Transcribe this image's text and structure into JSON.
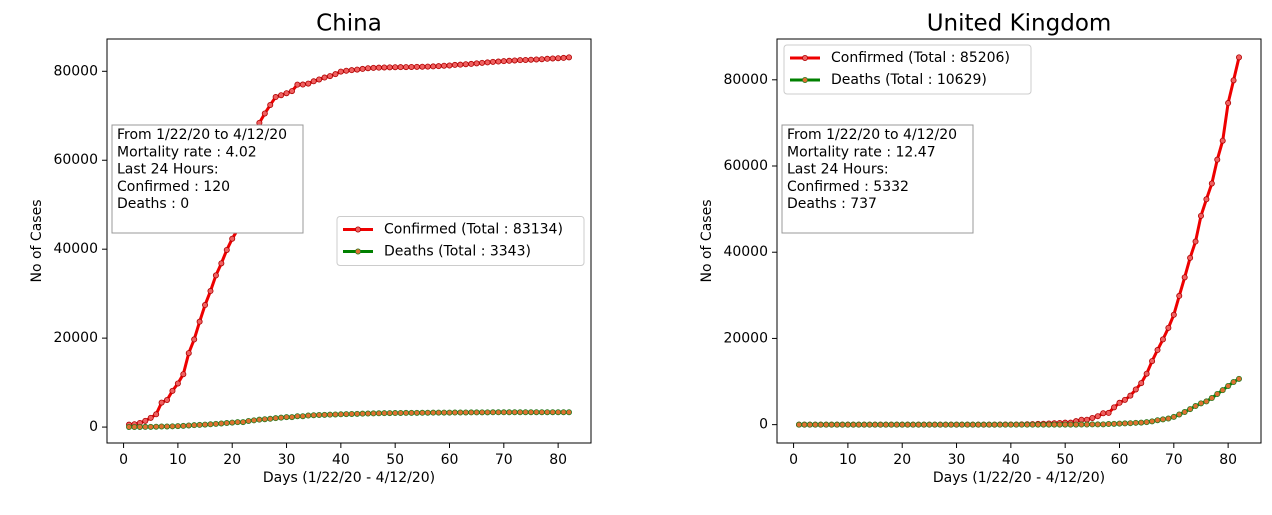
{
  "chart_data": [
    {
      "type": "line",
      "title": "China",
      "xlabel": "Days (1/22/20 - 4/12/20)",
      "ylabel": "No of Cases",
      "x": [
        1,
        2,
        3,
        4,
        5,
        6,
        7,
        8,
        9,
        10,
        11,
        12,
        13,
        14,
        15,
        16,
        17,
        18,
        19,
        20,
        21,
        22,
        23,
        24,
        25,
        26,
        27,
        28,
        29,
        30,
        31,
        32,
        33,
        34,
        35,
        36,
        37,
        38,
        39,
        40,
        41,
        42,
        43,
        44,
        45,
        46,
        47,
        48,
        49,
        50,
        51,
        52,
        53,
        54,
        55,
        56,
        57,
        58,
        59,
        60,
        61,
        62,
        63,
        64,
        65,
        66,
        67,
        68,
        69,
        70,
        71,
        72,
        73,
        74,
        75,
        76,
        77,
        78,
        79,
        80,
        81,
        82
      ],
      "series": [
        {
          "name": "Confirmed (Total : 83134)",
          "color": "#ee0000",
          "marker_color": "#f06060",
          "marker_edge": "#b00000",
          "values": [
            548,
            643,
            920,
            1406,
            2075,
            2877,
            5509,
            6087,
            8141,
            9802,
            11891,
            16630,
            19716,
            23707,
            27440,
            30587,
            34110,
            36814,
            39829,
            42354,
            44386,
            44759,
            59895,
            66358,
            68413,
            70513,
            72434,
            74211,
            74619,
            75077,
            75550,
            77001,
            77022,
            77241,
            77754,
            78166,
            78600,
            78928,
            79356,
            79932,
            80136,
            80261,
            80386,
            80537,
            80690,
            80770,
            80823,
            80860,
            80887,
            80921,
            80932,
            80945,
            80977,
            81003,
            81033,
            81058,
            81102,
            81156,
            81250,
            81305,
            81435,
            81498,
            81591,
            81661,
            81782,
            81897,
            81999,
            82122,
            82198,
            82279,
            82361,
            82432,
            82511,
            82543,
            82602,
            82665,
            82718,
            82809,
            82883,
            82941,
            83014,
            83134
          ]
        },
        {
          "name": "Deaths (Total : 3343)",
          "color": "#008000",
          "marker_color": "#e07030",
          "marker_edge": "#2a7a20",
          "values": [
            17,
            18,
            26,
            42,
            56,
            82,
            131,
            133,
            171,
            213,
            259,
            361,
            425,
            490,
            562,
            632,
            717,
            804,
            904,
            1011,
            1111,
            1116,
            1368,
            1520,
            1662,
            1765,
            1863,
            2002,
            2114,
            2236,
            2236,
            2441,
            2443,
            2593,
            2663,
            2715,
            2744,
            2788,
            2835,
            2870,
            2912,
            2945,
            2981,
            3013,
            3045,
            3073,
            3100,
            3123,
            3140,
            3162,
            3173,
            3180,
            3194,
            3204,
            3218,
            3231,
            3242,
            3250,
            3253,
            3261,
            3270,
            3277,
            3282,
            3295,
            3300,
            3309,
            3316,
            3322,
            3326,
            3330,
            3333,
            3335,
            3335,
            3337,
            3339,
            3340,
            3340,
            3341,
            3341,
            3342,
            3343,
            3343
          ]
        }
      ],
      "xlim": [
        -3.05,
        86.05
      ],
      "ylim": [
        -3581,
        87263
      ],
      "xticks": [
        0,
        10,
        20,
        30,
        40,
        50,
        60,
        70,
        80
      ],
      "yticks": [
        0,
        20000,
        40000,
        60000,
        80000
      ],
      "legend": "center right",
      "annotation": [
        "From 1/22/20 to 4/12/20",
        "Mortality rate : 4.02",
        "Last 24 Hours:",
        "Confirmed : 120",
        "Deaths : 0"
      ]
    },
    {
      "type": "line",
      "title": "United Kingdom",
      "xlabel": "Days (1/22/20 - 4/12/20)",
      "ylabel": "No of Cases",
      "x": [
        1,
        2,
        3,
        4,
        5,
        6,
        7,
        8,
        9,
        10,
        11,
        12,
        13,
        14,
        15,
        16,
        17,
        18,
        19,
        20,
        21,
        22,
        23,
        24,
        25,
        26,
        27,
        28,
        29,
        30,
        31,
        32,
        33,
        34,
        35,
        36,
        37,
        38,
        39,
        40,
        41,
        42,
        43,
        44,
        45,
        46,
        47,
        48,
        49,
        50,
        51,
        52,
        53,
        54,
        55,
        56,
        57,
        58,
        59,
        60,
        61,
        62,
        63,
        64,
        65,
        66,
        67,
        68,
        69,
        70,
        71,
        72,
        73,
        74,
        75,
        76,
        77,
        78,
        79,
        80,
        81,
        82
      ],
      "series": [
        {
          "name": "Confirmed (Total : 85206)",
          "color": "#ee0000",
          "marker_color": "#f06060",
          "marker_edge": "#b00000",
          "values": [
            0,
            0,
            0,
            0,
            0,
            0,
            0,
            0,
            0,
            2,
            2,
            2,
            2,
            2,
            2,
            3,
            3,
            3,
            8,
            8,
            9,
            9,
            9,
            9,
            9,
            9,
            9,
            9,
            9,
            9,
            9,
            9,
            9,
            13,
            13,
            13,
            15,
            20,
            23,
            36,
            40,
            51,
            86,
            116,
            164,
            209,
            278,
            321,
            383,
            460,
            460,
            802,
            1144,
            1145,
            1551,
            1960,
            2642,
            2716,
            4014,
            5067,
            5745,
            6726,
            8164,
            9640,
            11812,
            14745,
            17312,
            19780,
            22453,
            25481,
            29865,
            34173,
            38689,
            42477,
            48436,
            52279,
            55949,
            61474,
            65872,
            74605,
            79874,
            85206
          ]
        },
        {
          "name": "Deaths (Total : 10629)",
          "color": "#008000",
          "marker_color": "#e07030",
          "marker_edge": "#2a7a20",
          "values": [
            0,
            0,
            0,
            0,
            0,
            0,
            0,
            0,
            0,
            0,
            0,
            0,
            0,
            0,
            0,
            0,
            0,
            0,
            0,
            0,
            0,
            0,
            0,
            0,
            0,
            0,
            0,
            0,
            0,
            0,
            0,
            0,
            0,
            0,
            0,
            0,
            0,
            0,
            0,
            0,
            0,
            0,
            0,
            1,
            2,
            2,
            3,
            4,
            6,
            8,
            8,
            8,
            21,
            21,
            56,
            56,
            72,
            138,
            178,
            234,
            282,
            336,
            423,
            466,
            580,
            761,
            1021,
            1231,
            1411,
            1793,
            2357,
            2926,
            3611,
            4320,
            4943,
            5385,
            6171,
            7111,
            7993,
            8974,
            9892,
            10629
          ]
        }
      ],
      "xlim": [
        -3.05,
        86.05
      ],
      "ylim": [
        -4260,
        89466
      ],
      "xticks": [
        0,
        10,
        20,
        30,
        40,
        50,
        60,
        70,
        80
      ],
      "yticks": [
        0,
        20000,
        40000,
        60000,
        80000
      ],
      "legend": "upper left",
      "annotation": [
        "From 1/22/20 to 4/12/20",
        "Mortality rate : 12.47",
        "Last 24 Hours:",
        "Confirmed : 5332",
        "Deaths : 737"
      ]
    }
  ]
}
